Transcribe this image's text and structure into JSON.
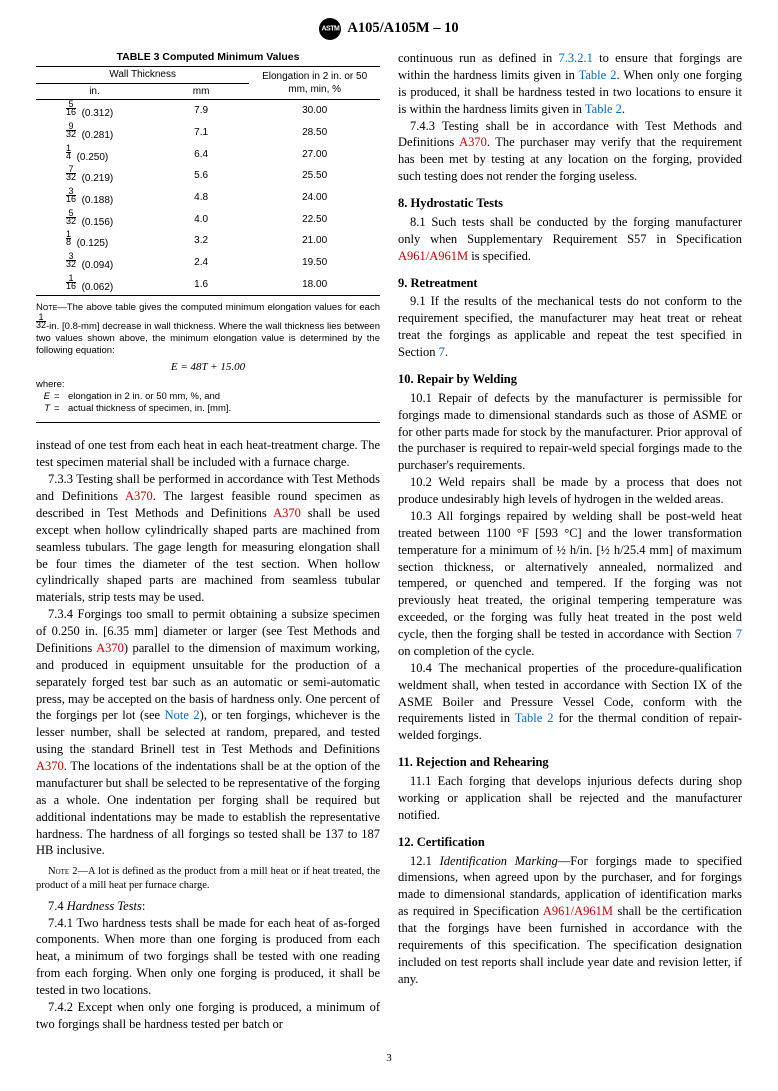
{
  "header": {
    "doc_id": "A105/A105M – 10"
  },
  "table3": {
    "caption": "TABLE 3  Computed Minimum Values",
    "head_wall_thickness": "Wall Thickness",
    "head_elong": "Elongation in 2 in. or 50 mm, min, %",
    "head_in": "in.",
    "head_mm": "mm",
    "rows": [
      {
        "in_html": "<span class='frac'><span class='num'>5</span><span class='den'>16</span></span>&nbsp;&nbsp;(0.312)",
        "mm": "7.9",
        "elong": "30.00"
      },
      {
        "in_html": "<span class='frac'><span class='num'>9</span><span class='den'>32</span></span>&nbsp;&nbsp;(0.281)",
        "mm": "7.1",
        "elong": "28.50"
      },
      {
        "in_html": "<span class='frac'><span class='num'>1</span><span class='den'>4</span></span>&nbsp;&nbsp;(0.250)",
        "mm": "6.4",
        "elong": "27.00"
      },
      {
        "in_html": "<span class='frac'><span class='num'>7</span><span class='den'>32</span></span>&nbsp;&nbsp;(0.219)",
        "mm": "5.6",
        "elong": "25.50"
      },
      {
        "in_html": "<span class='frac'><span class='num'>3</span><span class='den'>16</span></span>&nbsp;&nbsp;(0.188)",
        "mm": "4.8",
        "elong": "24.00"
      },
      {
        "in_html": "<span class='frac'><span class='num'>5</span><span class='den'>32</span></span>&nbsp;&nbsp;(0.156)",
        "mm": "4.0",
        "elong": "22.50"
      },
      {
        "in_html": "<span class='frac'><span class='num'>1</span><span class='den'>8</span></span>&nbsp;&nbsp;(0.125)",
        "mm": "3.2",
        "elong": "21.00"
      },
      {
        "in_html": "<span class='frac'><span class='num'>3</span><span class='den'>32</span></span>&nbsp;&nbsp;(0.094)",
        "mm": "2.4",
        "elong": "19.50"
      },
      {
        "in_html": "<span class='frac'><span class='num'>1</span><span class='den'>16</span></span>&nbsp;&nbsp;(0.062)",
        "mm": "1.6",
        "elong": "18.00"
      }
    ],
    "note_html": "N<span style='font-variant:small-caps'>ote</span>—The above table gives the computed minimum elongation values for each <span class='frac'><span class='num'>1</span><span class='den'>32</span></span>-in. [0.8-mm] decrease in wall thickness. Where the wall thickness lies between two values shown above, the minimum elongation value is determined by the following equation:",
    "equation": "E = 48T + 15.00",
    "where_label": "where:",
    "where_defs": [
      {
        "sym": "E",
        "txt": "elongation in 2 in. or 50 mm, %, and"
      },
      {
        "sym": "T",
        "txt": "actual thickness of specimen, in. [mm]."
      }
    ]
  },
  "left_col": {
    "p1": "instead of one test from each heat in each heat-treatment charge. The test specimen material shall be included with a furnace charge.",
    "p2_html": "7.3.3 Testing shall be performed in accordance with Test Methods and Definitions <span class='ref-red'>A370</span>. The largest feasible round specimen as described in Test Methods and Definitions <span class='ref-red'>A370</span> shall be used except when hollow cylindrically shaped parts are machined from seamless tubulars. The gage length for measuring elongation shall be four times the diameter of the test section. When hollow cylindrically shaped parts are machined from seamless tubular materials, strip tests may be used.",
    "p3_html": "7.3.4 Forgings too small to permit obtaining a subsize specimen of 0.250 in. [6.35 mm] diameter or larger (see Test Methods and Definitions <span class='ref-red'>A370</span>) parallel to the dimension of maximum working, and produced in equipment unsuitable for the production of a separately forged test bar such as an automatic or semi-automatic press, may be accepted on the basis of hardness only. One percent of the forgings per lot (see <span class='ref'>Note 2</span>), or ten forgings, whichever is the lesser number, shall be selected at random, prepared, and tested using the standard Brinell test in Test Methods and Definitions <span class='ref-red'>A370</span>. The locations of the indentations shall be at the option of the manufacturer but shall be selected to be representative of the forging as a whole. One indentation per forging shall be required but additional indentations may be made to establish the representative hardness. The hardness of all forgings so tested shall be 137 to 187 HB inclusive.",
    "note2_html": "<span class='note-label'>Note</span> 2—A lot is defined as the product from a mill heat or if heat treated, the product of a mill heat per furnace charge.",
    "s74_title_html": "7.4 <span class='subsec-title'>Hardness Tests</span>:",
    "p741": "7.4.1 Two hardness tests shall be made for each heat of as-forged components. When more than one forging is produced from each heat, a minimum of two forgings shall be tested with one reading from each forging. When only one forging is produced, it shall be tested in two locations.",
    "p742": "7.4.2 Except when only one forging is produced, a minimum of two forgings shall be hardness tested per batch or"
  },
  "right_col": {
    "p_cont_html": "continuous run as defined in <span class='ref'>7.3.2.1</span> to ensure that forgings are within the hardness limits given in <span class='ref'>Table 2</span>. When only one forging is produced, it shall be hardness tested in two locations to ensure it is within the hardness limits given in <span class='ref'>Table 2</span>.",
    "p743_html": "7.4.3 Testing shall be in accordance with Test Methods and Definitions <span class='ref-red'>A370</span>. The purchaser may verify that the requirement has been met by testing at any location on the forging, provided such testing does not render the forging useless.",
    "s8_title": "8. Hydrostatic Tests",
    "p81_html": "8.1 Such tests shall be conducted by the forging manufacturer only when Supplementary Requirement S57 in Specification <span class='ref-red'>A961/A961M</span> is specified.",
    "s9_title": "9. Retreatment",
    "p91_html": "9.1 If the results of the mechanical tests do not conform to the requirement specified, the manufacturer may heat treat or reheat treat the forgings as applicable and repeat the test specified in Section <span class='ref'>7</span>.",
    "s10_title": "10. Repair by Welding",
    "p101": "10.1 Repair of defects by the manufacturer is permissible for forgings made to dimensional standards such as those of ASME or for other parts made for stock by the manufacturer. Prior approval of the purchaser is required to repair-weld special forgings made to the purchaser's requirements.",
    "p102": "10.2 Weld repairs shall be made by a process that does not produce undesirably high levels of hydrogen in the welded areas.",
    "p103_html": "10.3 All forgings repaired by welding shall be post-weld heat treated between 1100 °F [593 °C] and the lower transformation temperature for a minimum of ½ h/in. [½ h/25.4 mm] of maximum section thickness, or alternatively annealed, normalized and tempered, or quenched and tempered. If the forging was not previously heat treated, the original tempering temperature was exceeded, or the forging was fully heat treated in the post weld cycle, then the forging shall be tested in accordance with Section <span class='ref'>7</span> on completion of the cycle.",
    "p104_html": "10.4 The mechanical properties of the procedure-qualification weldment shall, when tested in accordance with Section IX of the ASME Boiler and Pressure Vessel Code, conform with the requirements listed in <span class='ref'>Table 2</span> for the thermal condition of repair-welded forgings.",
    "s11_title": "11. Rejection and Rehearing",
    "p111": "11.1 Each forging that develops injurious defects during shop working or application shall be rejected and the manufacturer notified.",
    "s12_title": "12. Certification",
    "p121_html": "12.1 <span class='subsec-title'>Identification Marking</span>—For forgings made to specified dimensions, when agreed upon by the purchaser, and for forgings made to dimensional standards, application of identification marks as required in Specification <span class='ref-red'>A961/A961M</span> shall be the certification that the forgings have been furnished in accordance with the requirements of this specification. The specification designation included on test reports shall include year date and revision letter, if any."
  },
  "page_number": "3"
}
